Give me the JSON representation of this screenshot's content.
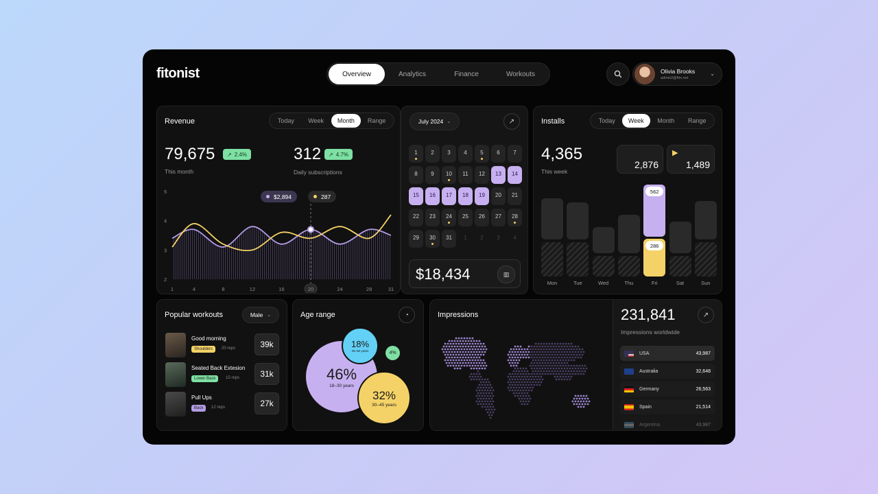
{
  "app": {
    "logo": "fitonist"
  },
  "nav": {
    "tabs": [
      "Overview",
      "Analytics",
      "Finance",
      "Workouts"
    ],
    "active": "Overview"
  },
  "user": {
    "name": "Olivia Brooks",
    "email": "admin2@fitn.net"
  },
  "revenue": {
    "title": "Revenue",
    "ranges": [
      "Today",
      "Week",
      "Month",
      "Range"
    ],
    "active_range": "Month",
    "month_value": "79,675",
    "month_change": "2.4%",
    "month_label": "This month",
    "subs_value": "312",
    "subs_change": "4.7%",
    "subs_label": "Daily subscriptions",
    "tooltip_revenue": "$2,894",
    "tooltip_subs": "287",
    "selected_day": "20"
  },
  "chart_data": {
    "type": "line",
    "x": [
      1,
      4,
      8,
      12,
      16,
      20,
      24,
      28,
      31
    ],
    "x_ticks": [
      "1",
      "4",
      "8",
      "12",
      "16",
      "20",
      "24",
      "28",
      "31"
    ],
    "y_ticks": [
      "5",
      "4",
      "3",
      "2"
    ],
    "ylim": [
      2,
      5
    ],
    "series": [
      {
        "color": "#b49ce6",
        "values": [
          3.4,
          3.7,
          3.1,
          3.8,
          3.2,
          3.7,
          3.2,
          3.7,
          3.5
        ]
      },
      {
        "color": "#f4d267",
        "values": [
          3.1,
          3.9,
          3.2,
          3.0,
          3.6,
          3.4,
          3.8,
          3.4,
          4.2
        ]
      }
    ]
  },
  "calendar": {
    "month_label": "July 2024",
    "rows": [
      [
        "1",
        "2",
        "3",
        "4",
        "5",
        "6",
        "7"
      ],
      [
        "8",
        "9",
        "10",
        "11",
        "12",
        "13",
        "14"
      ],
      [
        "15",
        "16",
        "17",
        "18",
        "19",
        "20",
        "21"
      ],
      [
        "22",
        "23",
        "24",
        "25",
        "26",
        "27",
        "28"
      ],
      [
        "29",
        "30",
        "31",
        "1",
        "2",
        "3",
        "4"
      ]
    ],
    "total": "$18,434"
  },
  "installs": {
    "title": "Installs",
    "ranges": [
      "Today",
      "Week",
      "Month",
      "Range"
    ],
    "active_range": "Week",
    "value": "4,365",
    "label": "This week",
    "apple": "2,876",
    "play": "1,489",
    "days": [
      "Mon",
      "Tue",
      "Wed",
      "Thu",
      "Fri",
      "Sat",
      "Sun"
    ],
    "fri_top": "562",
    "fri_bottom": "286"
  },
  "workouts": {
    "title": "Popular workouts",
    "filter": "Male",
    "items": [
      {
        "name": "Good morning",
        "tag": "Shoulders",
        "reps": "20 reps",
        "count": "39k",
        "tag_color": "#f4d267"
      },
      {
        "name": "Seated Back Extesion",
        "tag": "Lower Back",
        "reps": "15 reps",
        "count": "31k",
        "tag_color": "#7ee0a3"
      },
      {
        "name": "Pull Ups",
        "tag": "Back",
        "reps": "12 reps",
        "count": "27k",
        "tag_color": "#b49ce6"
      }
    ]
  },
  "age": {
    "title": "Age range",
    "groups": [
      {
        "pct": "46%",
        "label": "18–30 years"
      },
      {
        "pct": "32%",
        "label": "30–45 years"
      },
      {
        "pct": "18%",
        "label": "45–60 years"
      },
      {
        "pct": "4%",
        "label": ""
      }
    ]
  },
  "impressions": {
    "title": "Impressions",
    "value": "231,841",
    "label": "Impressions worldwide",
    "countries": [
      {
        "name": "USA",
        "value": "43,987"
      },
      {
        "name": "Australia",
        "value": "32,648"
      },
      {
        "name": "Germany",
        "value": "26,563"
      },
      {
        "name": "Spain",
        "value": "21,514"
      },
      {
        "name": "Argentina",
        "value": "43,987"
      }
    ]
  }
}
